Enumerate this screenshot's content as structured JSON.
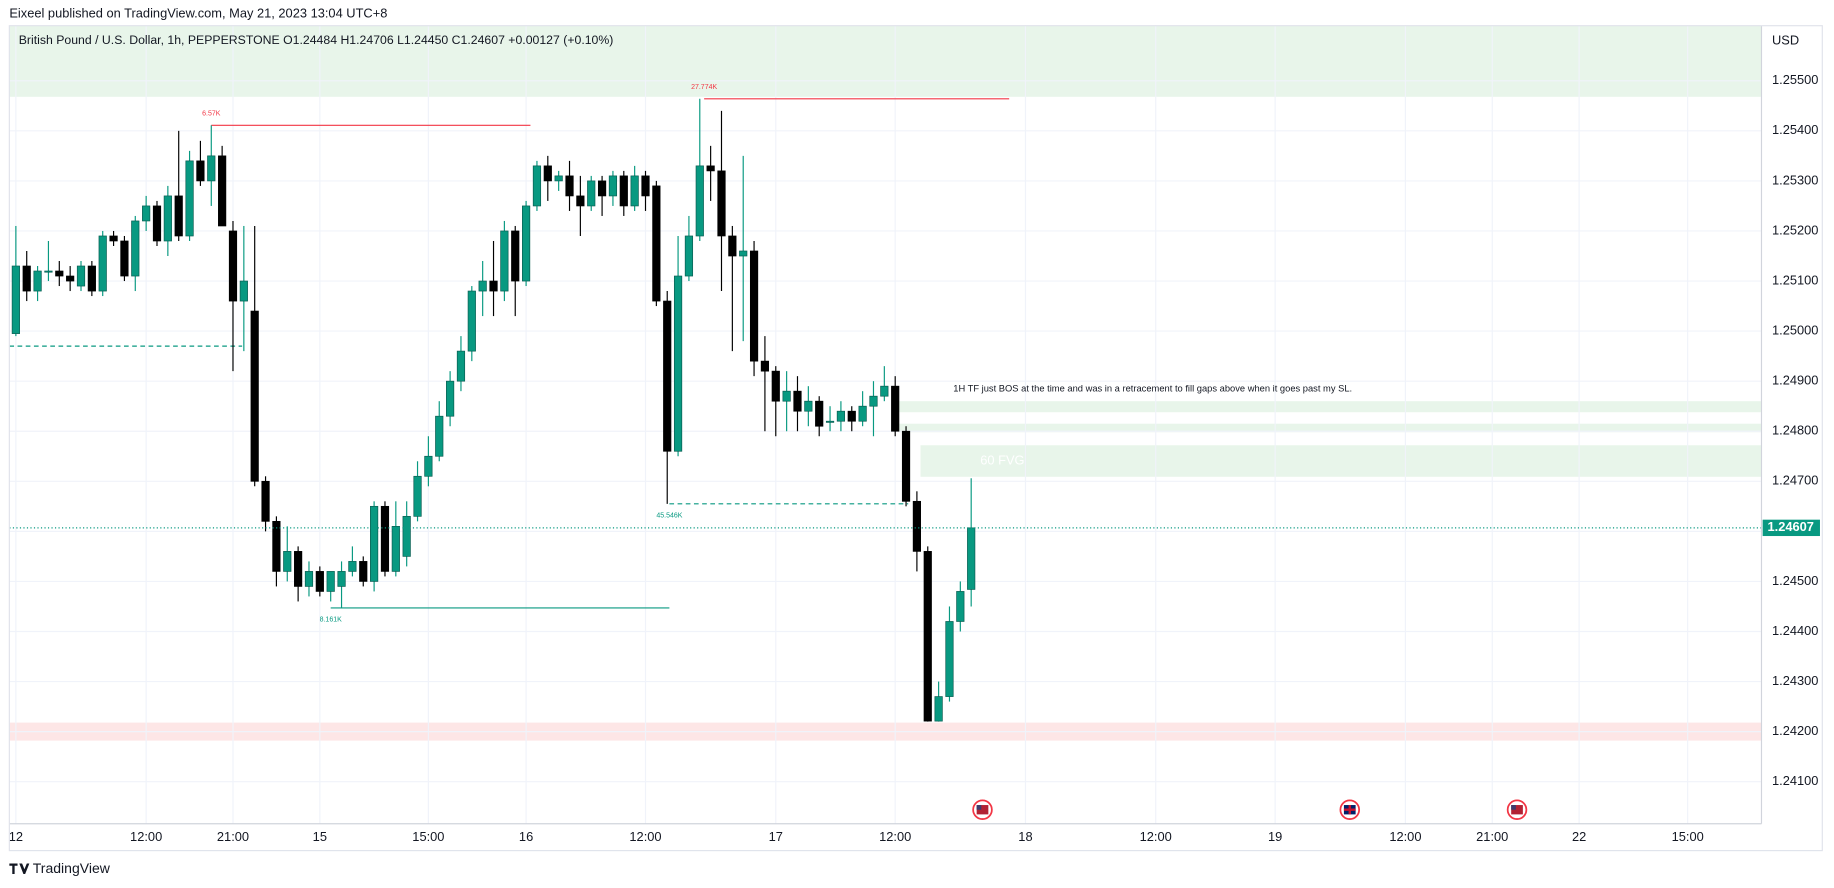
{
  "header": {
    "publisher": "Eixeel published on TradingView.com, May 21, 2023 13:04 UTC+8",
    "brand": "TradingView"
  },
  "chart_data": {
    "type": "candlestick",
    "legend": "British Pound / U.S. Dollar, 1h, PEPPERSTONE  O1.24484  H1.24706  L1.24450  C1.24607  +0.00127 (+0.10%)",
    "currency": "USD",
    "up_color": "#089981",
    "down_color": "#000000",
    "open": [
      1.24995,
      1.2513,
      1.2508,
      1.2512,
      1.2512,
      1.2511,
      1.2509,
      1.2513,
      1.2508,
      1.2519,
      1.2518,
      1.2511,
      1.2522,
      1.2525,
      1.2518,
      1.2527,
      1.2519,
      1.2534,
      1.253,
      1.2535,
      1.252,
      1.2506,
      1.2504,
      1.247,
      1.2462,
      1.2452,
      1.2456,
      1.2449,
      1.2452,
      1.2448,
      1.2449,
      1.2452,
      1.2454,
      1.245,
      1.2465,
      1.2452,
      1.2455,
      1.2463,
      1.2471,
      1.2475,
      1.2483,
      1.249,
      1.2496,
      1.2508,
      1.251,
      1.2508,
      1.252,
      1.251,
      1.2525,
      1.2533,
      1.253,
      1.2531,
      1.2527,
      1.2525,
      1.253,
      1.2527,
      1.2531,
      1.2525,
      1.2531,
      1.2529,
      1.2506,
      1.2476,
      1.2511,
      1.2519,
      1.2533,
      1.2532,
      1.2519,
      1.2515,
      1.2516,
      1.2494,
      1.2492,
      1.2486,
      1.2488,
      1.2484,
      1.2486,
      1.2482,
      1.2482,
      1.2484,
      1.2482,
      1.2485,
      1.2487,
      1.2489,
      1.248,
      1.2466,
      1.2456,
      1.24221,
      1.2427,
      1.2442,
      1.24484
    ],
    "high": [
      1.2521,
      1.2516,
      1.2513,
      1.2518,
      1.2514,
      1.2513,
      1.2514,
      1.2514,
      1.252,
      1.252,
      1.2519,
      1.2523,
      1.2527,
      1.2526,
      1.2529,
      1.254,
      1.2536,
      1.2538,
      1.25411,
      1.2537,
      1.2522,
      1.2521,
      1.2521,
      1.2471,
      1.2463,
      1.2461,
      1.2457,
      1.2454,
      1.2453,
      1.2452,
      1.2454,
      1.2457,
      1.2455,
      1.2466,
      1.2466,
      1.2466,
      1.2466,
      1.2474,
      1.2479,
      1.2486,
      1.2492,
      1.2499,
      1.2509,
      1.2514,
      1.2518,
      1.2522,
      1.2521,
      1.2526,
      1.2534,
      1.2535,
      1.2532,
      1.2534,
      1.2531,
      1.2531,
      1.2531,
      1.2532,
      1.2532,
      1.2533,
      1.2532,
      1.253,
      1.2508,
      1.2519,
      1.2523,
      1.25464,
      1.2537,
      1.2544,
      1.2521,
      1.2535,
      1.2518,
      1.2499,
      1.2493,
      1.2492,
      1.2491,
      1.2489,
      1.2487,
      1.2485,
      1.2486,
      1.2485,
      1.2488,
      1.249,
      1.2493,
      1.2491,
      1.2481,
      1.2468,
      1.2457,
      1.243,
      1.2445,
      1.245,
      1.24706
    ],
    "low": [
      1.2499,
      1.2506,
      1.2506,
      1.251,
      1.2509,
      1.2508,
      1.2508,
      1.2507,
      1.2507,
      1.2517,
      1.251,
      1.2508,
      1.252,
      1.2517,
      1.2515,
      1.2518,
      1.2518,
      1.2529,
      1.2525,
      1.2521,
      1.2492,
      1.2496,
      1.2469,
      1.246,
      1.2449,
      1.245,
      1.2446,
      1.2447,
      1.2447,
      1.2446,
      1.24447,
      1.2451,
      1.2449,
      1.2448,
      1.2451,
      1.2451,
      1.2453,
      1.2462,
      1.2469,
      1.2474,
      1.2481,
      1.2488,
      1.2494,
      1.2503,
      1.2503,
      1.2506,
      1.2503,
      1.2509,
      1.2524,
      1.2526,
      1.2528,
      1.2524,
      1.2519,
      1.2524,
      1.2523,
      1.2525,
      1.2523,
      1.2524,
      1.2524,
      1.2505,
      1.24655,
      1.2475,
      1.251,
      1.2518,
      1.2526,
      1.2508,
      1.2496,
      1.2498,
      1.2491,
      1.248,
      1.2479,
      1.248,
      1.248,
      1.2481,
      1.2479,
      1.248,
      1.248,
      1.248,
      1.2481,
      1.2479,
      1.2486,
      1.2479,
      1.2465,
      1.2452,
      1.2422,
      1.2422,
      1.2426,
      1.244,
      1.2445
    ],
    "close": [
      1.2513,
      1.2508,
      1.2512,
      1.2512,
      1.2511,
      1.251,
      1.2513,
      1.2508,
      1.2519,
      1.2518,
      1.2511,
      1.2522,
      1.2525,
      1.2518,
      1.2527,
      1.2519,
      1.2534,
      1.253,
      1.2535,
      1.2521,
      1.2506,
      1.251,
      1.247,
      1.2462,
      1.2452,
      1.2456,
      1.2449,
      1.2452,
      1.2448,
      1.2452,
      1.2452,
      1.2454,
      1.245,
      1.2465,
      1.2452,
      1.2461,
      1.2463,
      1.2471,
      1.2475,
      1.2483,
      1.249,
      1.2496,
      1.2508,
      1.251,
      1.2508,
      1.252,
      1.251,
      1.2525,
      1.2533,
      1.253,
      1.2531,
      1.2527,
      1.2525,
      1.253,
      1.2527,
      1.2531,
      1.2525,
      1.2531,
      1.2527,
      1.2506,
      1.2476,
      1.2511,
      1.2519,
      1.2533,
      1.2532,
      1.2519,
      1.2515,
      1.2516,
      1.2494,
      1.2492,
      1.2486,
      1.2488,
      1.2484,
      1.2486,
      1.2481,
      1.2482,
      1.2484,
      1.2482,
      1.2485,
      1.2487,
      1.2489,
      1.248,
      1.2466,
      1.2456,
      1.24221,
      1.2427,
      1.2442,
      1.2448,
      1.24607
    ],
    "ylim": [
      1.24016,
      1.2561
    ],
    "yticks": [
      {
        "value": 1.241,
        "label": "1.24100"
      },
      {
        "value": 1.242,
        "label": "1.24200"
      },
      {
        "value": 1.243,
        "label": "1.24300"
      },
      {
        "value": 1.244,
        "label": "1.24400"
      },
      {
        "value": 1.245,
        "label": "1.24500"
      },
      {
        "value": 1.246,
        "label": "1.24600"
      },
      {
        "value": 1.247,
        "label": "1.24700"
      },
      {
        "value": 1.248,
        "label": "1.24800"
      },
      {
        "value": 1.249,
        "label": "1.24900"
      },
      {
        "value": 1.25,
        "label": "1.25000"
      },
      {
        "value": 1.251,
        "label": "1.25100"
      },
      {
        "value": 1.252,
        "label": "1.25200"
      },
      {
        "value": 1.253,
        "label": "1.25300"
      },
      {
        "value": 1.254,
        "label": "1.25400"
      },
      {
        "value": 1.255,
        "label": "1.25500"
      }
    ],
    "xlim": [
      -0.6,
      160.8
    ],
    "xticks": [
      {
        "value": 0,
        "label": "12"
      },
      {
        "value": 12,
        "label": "12:00"
      },
      {
        "value": 20,
        "label": "21:00"
      },
      {
        "value": 28,
        "label": "15"
      },
      {
        "value": 38,
        "label": "15:00"
      },
      {
        "value": 47,
        "label": "16"
      },
      {
        "value": 58,
        "label": "12:00"
      },
      {
        "value": 70,
        "label": "17"
      },
      {
        "value": 81,
        "label": "12:00"
      },
      {
        "value": 93,
        "label": "18"
      },
      {
        "value": 105,
        "label": "12:00"
      },
      {
        "value": 116,
        "label": "19"
      },
      {
        "value": 128,
        "label": "12:00"
      },
      {
        "value": 136,
        "label": "21:00"
      },
      {
        "value": 144,
        "label": "22"
      },
      {
        "value": 154,
        "label": "15:00"
      }
    ],
    "grid": true,
    "last": {
      "value": 1.24607,
      "label": "1.24607",
      "color": "#089981"
    },
    "pivots": [
      {
        "label": "6.57K",
        "price": 1.25411,
        "color": "#f23645"
      },
      {
        "label": "27.774K",
        "price": 1.25464,
        "color": "#f23645"
      },
      {
        "label": "45.546K",
        "price": 1.24655,
        "color": "#089981"
      },
      {
        "label": "8.161K",
        "price": 1.24447,
        "color": "#089981"
      }
    ],
    "lines": [
      {
        "price": 1.2497,
        "color": "#089981"
      }
    ],
    "zones": [
      {
        "top": 1.2561,
        "bottom": 1.25468,
        "color": "#e8f5ea"
      },
      {
        "top": 1.2486,
        "bottom": 1.24838,
        "color": "#e8f5ea"
      },
      {
        "top": 1.24815,
        "bottom": 1.24798,
        "color": "#e8f5ea"
      },
      {
        "top": 1.24772,
        "bottom": 1.24709,
        "color": "#e8f5ea",
        "label": "60 FVG"
      },
      {
        "top": 1.24218,
        "bottom": 1.24182,
        "color": "#fde6e6"
      }
    ],
    "note": "1H TF just BOS at the time and was in a retracement to fill gaps above when it goes past my SL."
  }
}
